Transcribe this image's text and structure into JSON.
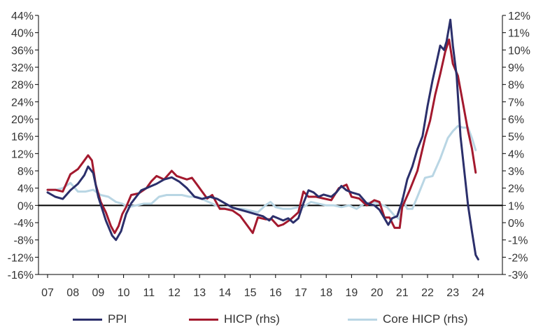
{
  "chart_data": {
    "type": "line",
    "x_unit": "year",
    "x_ticks": [
      "07",
      "08",
      "09",
      "10",
      "11",
      "12",
      "13",
      "14",
      "15",
      "16",
      "17",
      "18",
      "19",
      "20",
      "21",
      "22",
      "23",
      "24"
    ],
    "y_left": {
      "range": [
        -16,
        44
      ],
      "ticks": [
        "44%",
        "40%",
        "36%",
        "32%",
        "28%",
        "24%",
        "20%",
        "16%",
        "12%",
        "8%",
        "4%",
        "0%",
        "-4%",
        "-8%",
        "-12%",
        "-16%"
      ]
    },
    "y_right": {
      "range": [
        -3,
        12
      ],
      "ticks": [
        "12%",
        "11%",
        "10%",
        "9%",
        "8%",
        "7%",
        "6%",
        "5%",
        "4%",
        "3%",
        "2%",
        "1%",
        "0%",
        "-1%",
        "-2%",
        "-3%"
      ]
    },
    "zero_line": "left axis 0%",
    "series": [
      {
        "name": "PPI",
        "axis": "left",
        "color": "#2b2f6b",
        "points": [
          [
            2007.0,
            3.0
          ],
          [
            2007.3,
            2.0
          ],
          [
            2007.6,
            1.5
          ],
          [
            2007.9,
            3.5
          ],
          [
            2008.2,
            5.0
          ],
          [
            2008.45,
            7.0
          ],
          [
            2008.6,
            9.0
          ],
          [
            2008.8,
            7.5
          ],
          [
            2009.0,
            2.0
          ],
          [
            2009.3,
            -3.5
          ],
          [
            2009.55,
            -7.0
          ],
          [
            2009.7,
            -8.0
          ],
          [
            2009.9,
            -6.0
          ],
          [
            2010.1,
            -2.0
          ],
          [
            2010.3,
            0.5
          ],
          [
            2010.5,
            2.0
          ],
          [
            2010.7,
            3.5
          ],
          [
            2010.9,
            4.0
          ],
          [
            2011.1,
            4.5
          ],
          [
            2011.3,
            5.0
          ],
          [
            2011.6,
            6.0
          ],
          [
            2011.9,
            6.5
          ],
          [
            2012.2,
            5.5
          ],
          [
            2012.5,
            4.0
          ],
          [
            2012.8,
            2.0
          ],
          [
            2013.1,
            1.5
          ],
          [
            2013.4,
            2.0
          ],
          [
            2013.7,
            1.5
          ],
          [
            2014.0,
            0.5
          ],
          [
            2014.3,
            -0.5
          ],
          [
            2014.6,
            -1.0
          ],
          [
            2014.9,
            -1.5
          ],
          [
            2015.2,
            -2.0
          ],
          [
            2015.5,
            -2.5
          ],
          [
            2015.75,
            -3.5
          ],
          [
            2015.9,
            -2.5
          ],
          [
            2016.1,
            -3.0
          ],
          [
            2016.3,
            -3.5
          ],
          [
            2016.5,
            -3.0
          ],
          [
            2016.7,
            -4.0
          ],
          [
            2016.9,
            -3.0
          ],
          [
            2017.1,
            0.5
          ],
          [
            2017.3,
            3.5
          ],
          [
            2017.5,
            3.0
          ],
          [
            2017.7,
            2.0
          ],
          [
            2017.9,
            2.5
          ],
          [
            2018.2,
            2.0
          ],
          [
            2018.4,
            3.0
          ],
          [
            2018.6,
            4.5
          ],
          [
            2018.8,
            3.5
          ],
          [
            2019.0,
            3.0
          ],
          [
            2019.3,
            2.5
          ],
          [
            2019.6,
            0.5
          ],
          [
            2019.9,
            0.0
          ],
          [
            2020.1,
            -1.0
          ],
          [
            2020.3,
            -3.0
          ],
          [
            2020.45,
            -4.5
          ],
          [
            2020.6,
            -3.0
          ],
          [
            2020.8,
            -2.5
          ],
          [
            2021.0,
            1.0
          ],
          [
            2021.2,
            6.0
          ],
          [
            2021.4,
            9.0
          ],
          [
            2021.6,
            13.0
          ],
          [
            2021.8,
            16.0
          ],
          [
            2022.0,
            23.0
          ],
          [
            2022.2,
            29.0
          ],
          [
            2022.35,
            33.0
          ],
          [
            2022.5,
            37.0
          ],
          [
            2022.65,
            36.0
          ],
          [
            2022.75,
            38.0
          ],
          [
            2022.9,
            43.0
          ],
          [
            2023.0,
            37.0
          ],
          [
            2023.15,
            30.0
          ],
          [
            2023.3,
            16.0
          ],
          [
            2023.45,
            8.0
          ],
          [
            2023.6,
            0.0
          ],
          [
            2023.75,
            -6.0
          ],
          [
            2023.9,
            -11.5
          ],
          [
            2024.0,
            -12.5
          ]
        ]
      },
      {
        "name": "HICP (rhs)",
        "axis": "right",
        "color": "#a3192e",
        "points": [
          [
            2007.0,
            1.9
          ],
          [
            2007.3,
            1.9
          ],
          [
            2007.6,
            1.8
          ],
          [
            2007.9,
            2.8
          ],
          [
            2008.2,
            3.1
          ],
          [
            2008.4,
            3.5
          ],
          [
            2008.6,
            3.9
          ],
          [
            2008.75,
            3.6
          ],
          [
            2008.9,
            2.2
          ],
          [
            2009.1,
            1.2
          ],
          [
            2009.3,
            0.6
          ],
          [
            2009.5,
            -0.2
          ],
          [
            2009.65,
            -0.6
          ],
          [
            2009.8,
            -0.2
          ],
          [
            2009.95,
            0.5
          ],
          [
            2010.1,
            0.9
          ],
          [
            2010.3,
            1.6
          ],
          [
            2010.6,
            1.7
          ],
          [
            2010.9,
            2.0
          ],
          [
            2011.1,
            2.4
          ],
          [
            2011.3,
            2.7
          ],
          [
            2011.6,
            2.5
          ],
          [
            2011.9,
            3.0
          ],
          [
            2012.1,
            2.7
          ],
          [
            2012.3,
            2.6
          ],
          [
            2012.5,
            2.5
          ],
          [
            2012.7,
            2.6
          ],
          [
            2012.9,
            2.2
          ],
          [
            2013.1,
            1.8
          ],
          [
            2013.3,
            1.4
          ],
          [
            2013.5,
            1.6
          ],
          [
            2013.8,
            0.8
          ],
          [
            2014.0,
            0.8
          ],
          [
            2014.3,
            0.7
          ],
          [
            2014.6,
            0.4
          ],
          [
            2014.9,
            -0.2
          ],
          [
            2015.1,
            -0.6
          ],
          [
            2015.3,
            0.3
          ],
          [
            2015.6,
            0.2
          ],
          [
            2015.85,
            0.2
          ],
          [
            2016.1,
            -0.2
          ],
          [
            2016.3,
            -0.1
          ],
          [
            2016.6,
            0.2
          ],
          [
            2016.9,
            0.6
          ],
          [
            2017.1,
            1.8
          ],
          [
            2017.3,
            1.5
          ],
          [
            2017.6,
            1.5
          ],
          [
            2017.9,
            1.4
          ],
          [
            2018.2,
            1.3
          ],
          [
            2018.5,
            2.0
          ],
          [
            2018.8,
            2.2
          ],
          [
            2019.0,
            1.5
          ],
          [
            2019.3,
            1.4
          ],
          [
            2019.6,
            1.0
          ],
          [
            2019.9,
            1.3
          ],
          [
            2020.1,
            1.2
          ],
          [
            2020.3,
            0.3
          ],
          [
            2020.5,
            0.3
          ],
          [
            2020.7,
            -0.3
          ],
          [
            2020.9,
            -0.3
          ],
          [
            2021.0,
            0.9
          ],
          [
            2021.3,
            1.9
          ],
          [
            2021.6,
            3.0
          ],
          [
            2021.9,
            4.9
          ],
          [
            2022.1,
            5.9
          ],
          [
            2022.3,
            7.4
          ],
          [
            2022.5,
            8.6
          ],
          [
            2022.7,
            9.9
          ],
          [
            2022.85,
            10.6
          ],
          [
            2023.0,
            9.2
          ],
          [
            2023.2,
            8.5
          ],
          [
            2023.4,
            6.9
          ],
          [
            2023.6,
            5.3
          ],
          [
            2023.75,
            4.3
          ],
          [
            2023.9,
            2.9
          ]
        ]
      },
      {
        "name": "Core HICP (rhs)",
        "axis": "right",
        "color": "#b9d6e4",
        "points": [
          [
            2007.0,
            1.9
          ],
          [
            2007.3,
            1.9
          ],
          [
            2007.6,
            2.0
          ],
          [
            2007.9,
            2.3
          ],
          [
            2008.2,
            1.8
          ],
          [
            2008.5,
            1.8
          ],
          [
            2008.8,
            1.9
          ],
          [
            2009.1,
            1.6
          ],
          [
            2009.4,
            1.5
          ],
          [
            2009.7,
            1.2
          ],
          [
            2009.95,
            1.1
          ],
          [
            2010.2,
            0.9
          ],
          [
            2010.5,
            1.0
          ],
          [
            2010.8,
            1.1
          ],
          [
            2011.1,
            1.1
          ],
          [
            2011.4,
            1.5
          ],
          [
            2011.7,
            1.6
          ],
          [
            2012.0,
            1.6
          ],
          [
            2012.3,
            1.6
          ],
          [
            2012.6,
            1.5
          ],
          [
            2012.9,
            1.5
          ],
          [
            2013.2,
            1.3
          ],
          [
            2013.5,
            1.1
          ],
          [
            2013.8,
            0.9
          ],
          [
            2014.1,
            0.8
          ],
          [
            2014.4,
            0.8
          ],
          [
            2014.7,
            0.8
          ],
          [
            2015.0,
            0.7
          ],
          [
            2015.3,
            0.6
          ],
          [
            2015.6,
            1.0
          ],
          [
            2015.8,
            1.2
          ],
          [
            2016.0,
            0.9
          ],
          [
            2016.3,
            0.8
          ],
          [
            2016.6,
            0.8
          ],
          [
            2016.9,
            0.9
          ],
          [
            2017.1,
            0.9
          ],
          [
            2017.4,
            1.2
          ],
          [
            2017.7,
            1.1
          ],
          [
            2018.0,
            1.0
          ],
          [
            2018.3,
            1.0
          ],
          [
            2018.6,
            0.9
          ],
          [
            2018.9,
            1.0
          ],
          [
            2019.2,
            0.8
          ],
          [
            2019.5,
            1.1
          ],
          [
            2019.8,
            1.2
          ],
          [
            2020.1,
            1.1
          ],
          [
            2020.4,
            0.9
          ],
          [
            2020.7,
            0.4
          ],
          [
            2020.9,
            0.2
          ],
          [
            2021.0,
            1.4
          ],
          [
            2021.2,
            0.8
          ],
          [
            2021.4,
            0.8
          ],
          [
            2021.6,
            1.5
          ],
          [
            2021.9,
            2.6
          ],
          [
            2022.2,
            2.7
          ],
          [
            2022.5,
            3.7
          ],
          [
            2022.8,
            4.9
          ],
          [
            2023.0,
            5.3
          ],
          [
            2023.2,
            5.6
          ],
          [
            2023.4,
            5.5
          ],
          [
            2023.6,
            5.5
          ],
          [
            2023.75,
            4.9
          ],
          [
            2023.9,
            4.2
          ]
        ]
      }
    ],
    "legend": {
      "placement": "bottom",
      "items": [
        {
          "label": "PPI",
          "color": "#2b2f6b"
        },
        {
          "label": "HICP (rhs)",
          "color": "#a3192e"
        },
        {
          "label": "Core HICP (rhs)",
          "color": "#b9d6e4"
        }
      ]
    },
    "colors": {
      "axis": "#000000",
      "text": "#333333"
    }
  }
}
